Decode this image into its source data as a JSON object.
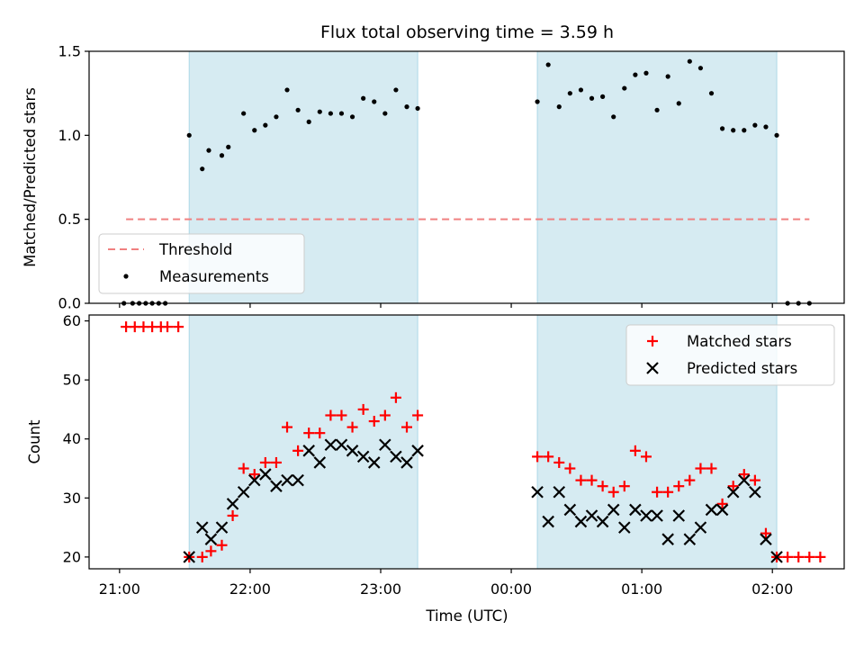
{
  "chart_data": {
    "title": "Flux total observing time = 3.59 h",
    "xlabel": "Time (UTC)",
    "x_unit": "minutes after 21:00 UTC",
    "xlim": [
      -14,
      333
    ],
    "x_ticks": [
      {
        "x": 0,
        "label": "21:00"
      },
      {
        "x": 60,
        "label": "22:00"
      },
      {
        "x": 120,
        "label": "23:00"
      },
      {
        "x": 180,
        "label": "00:00"
      },
      {
        "x": 240,
        "label": "01:00"
      },
      {
        "x": 300,
        "label": "02:00"
      }
    ],
    "shaded_intervals": [
      [
        32,
        137
      ],
      [
        192,
        302
      ]
    ],
    "shade_color": "#add8e6",
    "panels": [
      {
        "type": "scatter",
        "ylabel": "Matched/Predicted stars",
        "ylim": [
          0,
          1.5
        ],
        "yticks": [
          0.0,
          0.5,
          1.0,
          1.5
        ],
        "ytick_labels": [
          "0.0",
          "0.5",
          "1.0",
          "1.5"
        ],
        "legend_position": "lower-left",
        "threshold": {
          "name": "Threshold",
          "y": 0.5,
          "x_range": [
            3,
            317
          ],
          "color": "#f08080"
        },
        "measurements": {
          "name": "Measurements",
          "color": "#000000",
          "points": [
            [
              2,
              0
            ],
            [
              6,
              0
            ],
            [
              9,
              0
            ],
            [
              12,
              0
            ],
            [
              15,
              0
            ],
            [
              18,
              0
            ],
            [
              21,
              0
            ],
            [
              32,
              1.0
            ],
            [
              38,
              0.8
            ],
            [
              41,
              0.91
            ],
            [
              47,
              0.88
            ],
            [
              50,
              0.93
            ],
            [
              57,
              1.13
            ],
            [
              62,
              1.03
            ],
            [
              67,
              1.06
            ],
            [
              72,
              1.11
            ],
            [
              77,
              1.27
            ],
            [
              82,
              1.15
            ],
            [
              87,
              1.08
            ],
            [
              92,
              1.14
            ],
            [
              97,
              1.13
            ],
            [
              102,
              1.13
            ],
            [
              107,
              1.11
            ],
            [
              112,
              1.22
            ],
            [
              117,
              1.2
            ],
            [
              122,
              1.13
            ],
            [
              127,
              1.27
            ],
            [
              132,
              1.17
            ],
            [
              137,
              1.16
            ],
            [
              192,
              1.2
            ],
            [
              197,
              1.42
            ],
            [
              202,
              1.17
            ],
            [
              207,
              1.25
            ],
            [
              212,
              1.27
            ],
            [
              217,
              1.22
            ],
            [
              222,
              1.23
            ],
            [
              227,
              1.11
            ],
            [
              232,
              1.28
            ],
            [
              237,
              1.36
            ],
            [
              242,
              1.37
            ],
            [
              247,
              1.15
            ],
            [
              252,
              1.35
            ],
            [
              257,
              1.19
            ],
            [
              262,
              1.44
            ],
            [
              267,
              1.4
            ],
            [
              272,
              1.25
            ],
            [
              277,
              1.04
            ],
            [
              282,
              1.03
            ],
            [
              287,
              1.03
            ],
            [
              292,
              1.06
            ],
            [
              297,
              1.05
            ],
            [
              302,
              1.0
            ],
            [
              307,
              0
            ],
            [
              312,
              0
            ],
            [
              317,
              0
            ]
          ]
        }
      },
      {
        "type": "scatter",
        "ylabel": "Count",
        "ylim": [
          18,
          61
        ],
        "yticks": [
          20,
          30,
          40,
          50,
          60
        ],
        "ytick_labels": [
          "20",
          "30",
          "40",
          "50",
          "60"
        ],
        "legend_position": "upper-right",
        "series": [
          {
            "name": "Matched stars",
            "marker": "plus",
            "color": "#ff0000",
            "points": [
              [
                3,
                59
              ],
              [
                7,
                59
              ],
              [
                11,
                59
              ],
              [
                15,
                59
              ],
              [
                19,
                59
              ],
              [
                22,
                59
              ],
              [
                27,
                59
              ],
              [
                32,
                20
              ],
              [
                38,
                20
              ],
              [
                42,
                21
              ],
              [
                47,
                22
              ],
              [
                52,
                27
              ],
              [
                57,
                35
              ],
              [
                62,
                34
              ],
              [
                67,
                36
              ],
              [
                72,
                36
              ],
              [
                77,
                42
              ],
              [
                82,
                38
              ],
              [
                87,
                41
              ],
              [
                92,
                41
              ],
              [
                97,
                44
              ],
              [
                102,
                44
              ],
              [
                107,
                42
              ],
              [
                112,
                45
              ],
              [
                117,
                43
              ],
              [
                122,
                44
              ],
              [
                127,
                47
              ],
              [
                132,
                42
              ],
              [
                137,
                44
              ],
              [
                192,
                37
              ],
              [
                197,
                37
              ],
              [
                202,
                36
              ],
              [
                207,
                35
              ],
              [
                212,
                33
              ],
              [
                217,
                33
              ],
              [
                222,
                32
              ],
              [
                227,
                31
              ],
              [
                232,
                32
              ],
              [
                237,
                38
              ],
              [
                242,
                37
              ],
              [
                247,
                31
              ],
              [
                252,
                31
              ],
              [
                257,
                32
              ],
              [
                262,
                33
              ],
              [
                267,
                35
              ],
              [
                272,
                35
              ],
              [
                277,
                29
              ],
              [
                282,
                32
              ],
              [
                287,
                34
              ],
              [
                292,
                33
              ],
              [
                297,
                24
              ],
              [
                302,
                20
              ],
              [
                307,
                20
              ],
              [
                312,
                20
              ],
              [
                317,
                20
              ],
              [
                322,
                20
              ]
            ]
          },
          {
            "name": "Predicted stars",
            "marker": "x",
            "color": "#000000",
            "points": [
              [
                32,
                20
              ],
              [
                38,
                25
              ],
              [
                42,
                23
              ],
              [
                47,
                25
              ],
              [
                52,
                29
              ],
              [
                57,
                31
              ],
              [
                62,
                33
              ],
              [
                67,
                34
              ],
              [
                72,
                32
              ],
              [
                77,
                33
              ],
              [
                82,
                33
              ],
              [
                87,
                38
              ],
              [
                92,
                36
              ],
              [
                97,
                39
              ],
              [
                102,
                39
              ],
              [
                107,
                38
              ],
              [
                112,
                37
              ],
              [
                117,
                36
              ],
              [
                122,
                39
              ],
              [
                127,
                37
              ],
              [
                132,
                36
              ],
              [
                137,
                38
              ],
              [
                192,
                31
              ],
              [
                197,
                26
              ],
              [
                202,
                31
              ],
              [
                207,
                28
              ],
              [
                212,
                26
              ],
              [
                217,
                27
              ],
              [
                222,
                26
              ],
              [
                227,
                28
              ],
              [
                232,
                25
              ],
              [
                237,
                28
              ],
              [
                242,
                27
              ],
              [
                247,
                27
              ],
              [
                252,
                23
              ],
              [
                257,
                27
              ],
              [
                262,
                23
              ],
              [
                267,
                25
              ],
              [
                272,
                28
              ],
              [
                277,
                28
              ],
              [
                282,
                31
              ],
              [
                287,
                33
              ],
              [
                292,
                31
              ],
              [
                297,
                23
              ],
              [
                302,
                20
              ]
            ]
          }
        ]
      }
    ]
  }
}
